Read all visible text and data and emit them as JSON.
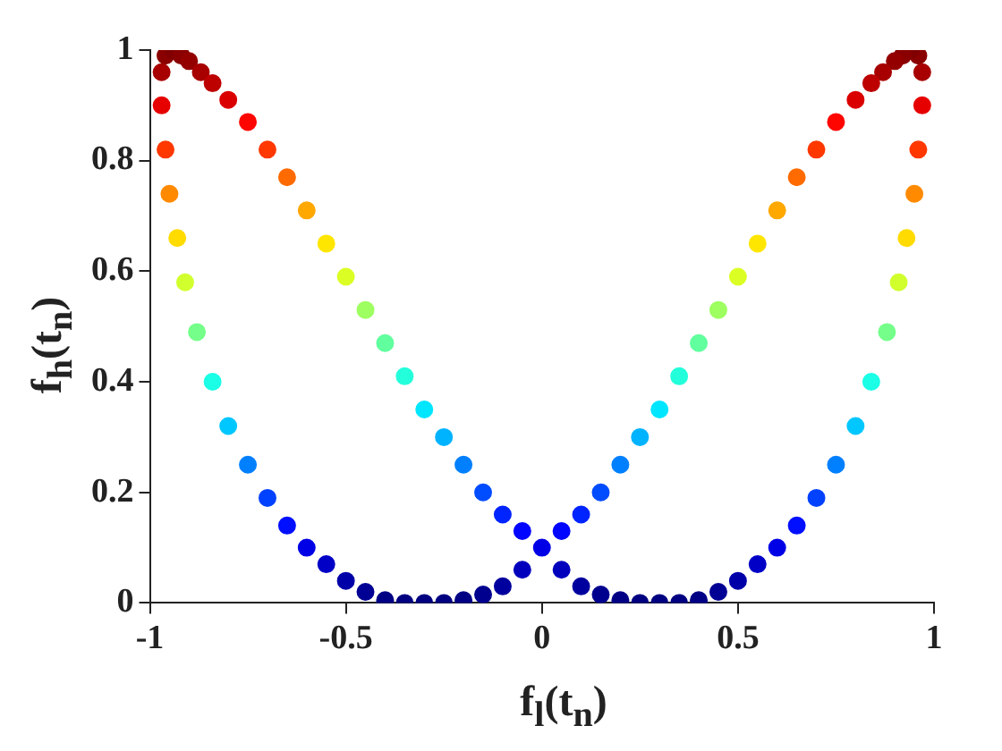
{
  "chart_data": {
    "type": "scatter",
    "xlabel": "f$_{l}$(t$_{n}$)",
    "ylabel": "f$_{h}$(t$_{n}$)",
    "marker": "circle",
    "x": [
      0,
      -0.05,
      -0.1,
      -0.15,
      -0.2,
      -0.25,
      -0.3,
      -0.35,
      -0.4,
      -0.45,
      -0.5,
      -0.55,
      -0.6,
      -0.65,
      -0.7,
      -0.75,
      -0.8,
      -0.84,
      -0.88,
      -0.91,
      -0.93,
      -0.95,
      -0.96,
      -0.97,
      -0.97,
      -0.96,
      -0.94,
      -0.92,
      -0.9,
      -0.87,
      -0.84,
      -0.8,
      -0.75,
      -0.7,
      -0.65,
      -0.6,
      -0.55,
      -0.5,
      -0.45,
      -0.4,
      -0.35,
      -0.3,
      -0.25,
      -0.2,
      -0.15,
      -0.1,
      -0.05,
      0.05,
      0.1,
      0.15,
      0.2,
      0.25,
      0.3,
      0.35,
      0.4,
      0.45,
      0.5,
      0.55,
      0.6,
      0.65,
      0.7,
      0.75,
      0.8,
      0.84,
      0.88,
      0.91,
      0.93,
      0.95,
      0.96,
      0.97,
      0.97,
      0.96,
      0.94,
      0.92,
      0.9,
      0.87,
      0.84,
      0.8,
      0.75,
      0.7,
      0.65,
      0.6,
      0.55,
      0.5,
      0.45,
      0.4,
      0.35,
      0.3,
      0.25,
      0.2,
      0.15,
      0.1,
      0.05
    ],
    "values": [
      0.1,
      0.06,
      0.03,
      0.015,
      0.005,
      0,
      0,
      0,
      0.005,
      0.02,
      0.04,
      0.07,
      0.1,
      0.14,
      0.19,
      0.25,
      0.32,
      0.4,
      0.49,
      0.58,
      0.66,
      0.74,
      0.82,
      0.9,
      0.96,
      0.99,
      1,
      0.99,
      0.98,
      0.96,
      0.94,
      0.91,
      0.87,
      0.82,
      0.77,
      0.71,
      0.65,
      0.59,
      0.53,
      0.47,
      0.41,
      0.35,
      0.3,
      0.25,
      0.2,
      0.16,
      0.13,
      0.06,
      0.03,
      0.015,
      0.005,
      0,
      0,
      0,
      0.005,
      0.02,
      0.04,
      0.07,
      0.1,
      0.14,
      0.19,
      0.25,
      0.32,
      0.4,
      0.49,
      0.58,
      0.66,
      0.74,
      0.82,
      0.9,
      0.96,
      0.99,
      1,
      0.99,
      0.98,
      0.96,
      0.94,
      0.91,
      0.87,
      0.82,
      0.77,
      0.71,
      0.65,
      0.59,
      0.53,
      0.47,
      0.41,
      0.35,
      0.3,
      0.25,
      0.2,
      0.16,
      0.13
    ],
    "colors": [
      "#0000e6",
      "#0000bd",
      "#00009e",
      "#00008f",
      "#000085",
      "#000080",
      "#000080",
      "#000080",
      "#000085",
      "#000094",
      "#0000a8",
      "#0000c7",
      "#0000e6",
      "#000fff",
      "#0042ff",
      "#0080ff",
      "#00c7ff",
      "#1affe6",
      "#75ff8a",
      "#d1ff2e",
      "#ffdb00",
      "#ff8a00",
      "#ff3800",
      "#e60000",
      "#a80000",
      "#8a0000",
      "#800000",
      "#8a0000",
      "#940000",
      "#a80000",
      "#bd0000",
      "#db0000",
      "#ff0500",
      "#ff3800",
      "#ff6b00",
      "#ffa800",
      "#ffe600",
      "#dbff24",
      "#9eff61",
      "#61ff9e",
      "#24ffdb",
      "#00e6ff",
      "#00b3ff",
      "#0080ff",
      "#004cff",
      "#0024ff",
      "#0005ff",
      "#0000bd",
      "#00009e",
      "#00008f",
      "#000085",
      "#000080",
      "#000080",
      "#000080",
      "#000085",
      "#000094",
      "#0000a8",
      "#0000c7",
      "#0000e6",
      "#000fff",
      "#0042ff",
      "#0080ff",
      "#00c7ff",
      "#1affe6",
      "#75ff8a",
      "#d1ff2e",
      "#ffdb00",
      "#ff8a00",
      "#ff3800",
      "#e60000",
      "#a80000",
      "#8a0000",
      "#800000",
      "#8a0000",
      "#940000",
      "#a80000",
      "#bd0000",
      "#db0000",
      "#ff0500",
      "#ff3800",
      "#ff6b00",
      "#ffa800",
      "#ffe600",
      "#dbff24",
      "#9eff61",
      "#61ff9e",
      "#24ffdb",
      "#00e6ff",
      "#00b3ff",
      "#0080ff",
      "#004cff",
      "#0024ff",
      "#0005ff"
    ],
    "xlim": [
      -1,
      1
    ],
    "xticks": [
      -1,
      -0.5,
      0,
      0.5,
      1
    ],
    "ylim": [
      0,
      1
    ],
    "yticks": [
      0,
      0.2,
      0.4,
      0.6,
      0.8,
      1
    ]
  }
}
